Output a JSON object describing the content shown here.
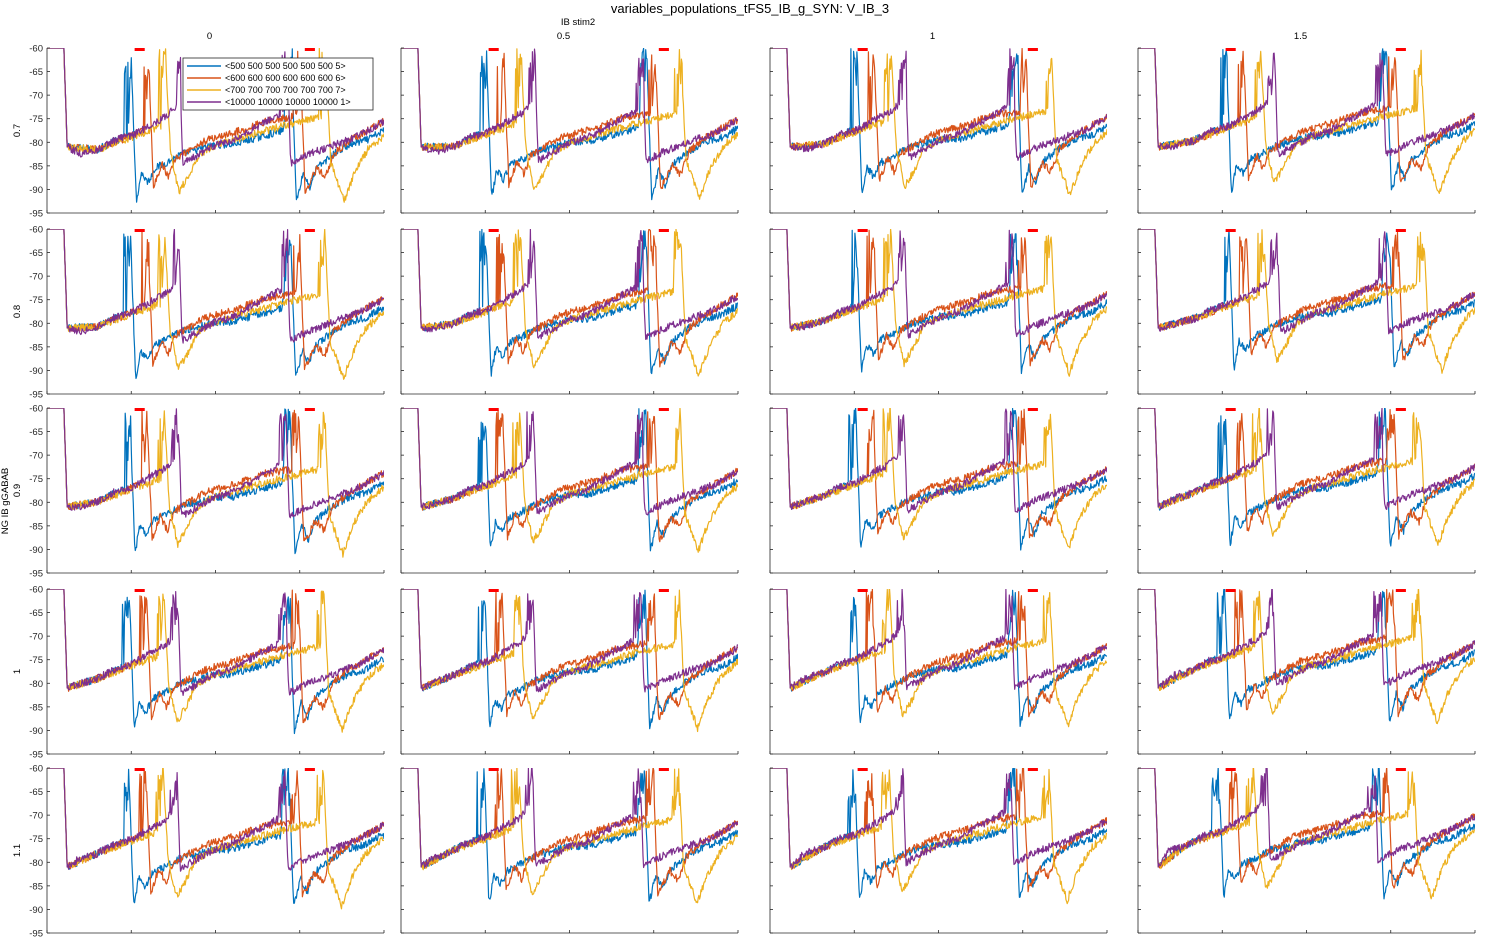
{
  "figure": {
    "title": "variables_populations_tFS5_IB_g_SYN: V_IB_3",
    "col_axis_label": "IB stim2",
    "row_axis_label": "NG IB gGABAB"
  },
  "colors": {
    "series": [
      "#0072BD",
      "#D95319",
      "#EDB120",
      "#7E2F8E"
    ],
    "stim_marker": "#FF0000",
    "axis": "#262626"
  },
  "chart_data": {
    "type": "line",
    "layout": "5x4 small multiples",
    "columns": [
      "0",
      "0.5",
      "1",
      "1.5"
    ],
    "rows": [
      "0.7",
      "0.8",
      "0.9",
      "1",
      "1.1"
    ],
    "xlim": [
      0,
      2000
    ],
    "ylim": [
      -95,
      -60
    ],
    "x_ticks": [
      "0",
      "500",
      "1000",
      "1500",
      "2000"
    ],
    "y_ticks": [
      "-60",
      "-65",
      "-70",
      "-75",
      "-80",
      "-85",
      "-90",
      "-95"
    ],
    "grid": false,
    "legend": {
      "location": "top-left panel, upper-left",
      "entries": [
        "<500 500 500 500 500 500 5>",
        "<600 600 600 600 600 600 6>",
        "<700 700 700 700 700 700 7>",
        "<10000 10000 10000 10000 1>"
      ]
    },
    "stim_markers": [
      [
        520,
        580
      ],
      [
        1530,
        1590
      ]
    ],
    "series": [
      {
        "name": "<500 500 500 500 500 500 5>",
        "burst_times": [
          500,
          1450
        ],
        "points": [
          [
            0,
            -60
          ],
          [
            100,
            -60
          ],
          [
            120,
            -81
          ],
          [
            300,
            -79
          ],
          [
            480,
            -76
          ],
          [
            500,
            -60
          ],
          [
            530,
            -90
          ],
          [
            560,
            -84
          ],
          [
            600,
            -86
          ],
          [
            640,
            -83
          ],
          [
            700,
            -82
          ],
          [
            800,
            -80
          ],
          [
            900,
            -79
          ],
          [
            1000,
            -78
          ],
          [
            1100,
            -78
          ],
          [
            1200,
            -77
          ],
          [
            1300,
            -76
          ],
          [
            1400,
            -75
          ],
          [
            1450,
            -60
          ],
          [
            1480,
            -90
          ],
          [
            1520,
            -84
          ],
          [
            1560,
            -87
          ],
          [
            1600,
            -83
          ],
          [
            1700,
            -80
          ],
          [
            1800,
            -78
          ],
          [
            1900,
            -77
          ],
          [
            2000,
            -75
          ]
        ]
      },
      {
        "name": "<600 600 600 600 600 600 6>",
        "burst_times": [
          600,
          1500
        ],
        "points": [
          [
            0,
            -60
          ],
          [
            100,
            -60
          ],
          [
            120,
            -81
          ],
          [
            300,
            -79
          ],
          [
            580,
            -75
          ],
          [
            600,
            -60
          ],
          [
            630,
            -87
          ],
          [
            680,
            -82
          ],
          [
            720,
            -85
          ],
          [
            760,
            -81
          ],
          [
            850,
            -79
          ],
          [
            950,
            -77
          ],
          [
            1050,
            -76
          ],
          [
            1150,
            -75
          ],
          [
            1300,
            -73
          ],
          [
            1480,
            -72
          ],
          [
            1500,
            -60
          ],
          [
            1530,
            -88
          ],
          [
            1600,
            -83
          ],
          [
            1650,
            -85
          ],
          [
            1700,
            -80
          ],
          [
            1800,
            -77
          ],
          [
            1900,
            -75
          ],
          [
            2000,
            -73
          ]
        ]
      },
      {
        "name": "<700 700 700 700 700 700 7>",
        "burst_times": [
          700,
          1650
        ],
        "points": [
          [
            0,
            -60
          ],
          [
            100,
            -60
          ],
          [
            120,
            -81
          ],
          [
            300,
            -79
          ],
          [
            680,
            -74
          ],
          [
            700,
            -60
          ],
          [
            730,
            -80
          ],
          [
            780,
            -88
          ],
          [
            830,
            -85
          ],
          [
            900,
            -80
          ],
          [
            1000,
            -78
          ],
          [
            1100,
            -77
          ],
          [
            1200,
            -76
          ],
          [
            1400,
            -74
          ],
          [
            1630,
            -72
          ],
          [
            1650,
            -60
          ],
          [
            1680,
            -82
          ],
          [
            1760,
            -90
          ],
          [
            1820,
            -84
          ],
          [
            1900,
            -79
          ],
          [
            2000,
            -76
          ]
        ]
      },
      {
        "name": "<10000 10000 10000 10000 1>",
        "burst_times": [
          780,
          1420
        ],
        "points": [
          [
            0,
            -60
          ],
          [
            100,
            -60
          ],
          [
            120,
            -81
          ],
          [
            200,
            -80
          ],
          [
            300,
            -79
          ],
          [
            400,
            -77
          ],
          [
            500,
            -76
          ],
          [
            600,
            -74
          ],
          [
            700,
            -72
          ],
          [
            760,
            -70
          ],
          [
            780,
            -60
          ],
          [
            800,
            -82
          ],
          [
            900,
            -80
          ],
          [
            1000,
            -78
          ],
          [
            1100,
            -77
          ],
          [
            1200,
            -75
          ],
          [
            1300,
            -73
          ],
          [
            1400,
            -71
          ],
          [
            1420,
            -60
          ],
          [
            1440,
            -82
          ],
          [
            1550,
            -80
          ],
          [
            1700,
            -78
          ],
          [
            1850,
            -76
          ],
          [
            2000,
            -73
          ]
        ]
      }
    ],
    "panel_overrides": {
      "0.8|1.5": {
        "burst_shift": 20
      },
      "1.1|1.5": {
        "burst_shift": -30
      }
    }
  }
}
